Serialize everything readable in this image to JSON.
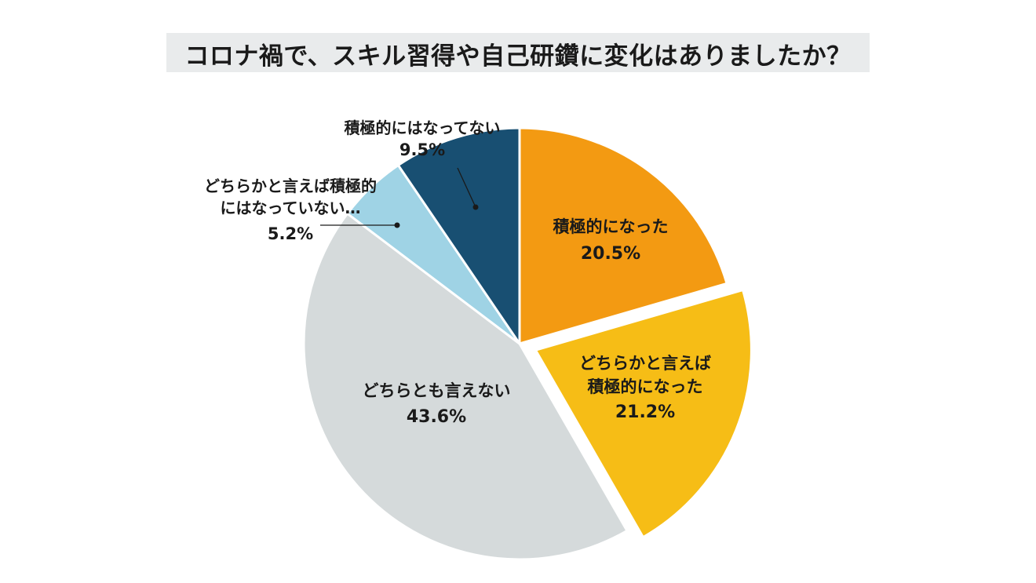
{
  "chart_data": {
    "type": "pie",
    "title": "コロナ禍で、スキル習得や自己研鑽に変化はありましたか？",
    "start_angle_deg": 0,
    "direction": "clockwise",
    "slices": [
      {
        "name_lines": [
          "積極的になった"
        ],
        "value_label": "20.5%",
        "value": 20.5,
        "color": "#f39a12",
        "exploded": false
      },
      {
        "name_lines": [
          "どちらかと言えば",
          "積極的になった"
        ],
        "value_label": "21.2%",
        "value": 21.2,
        "color": "#f6bd16",
        "exploded": true
      },
      {
        "name_lines": [
          "どちらとも言えない"
        ],
        "value_label": "43.6%",
        "value": 43.6,
        "color": "#d5dadb",
        "exploded": false
      },
      {
        "name_lines": [
          "どちらかと言えば積極的",
          "にはなっていない…"
        ],
        "value_label": "5.2%",
        "value": 5.2,
        "color": "#9fd3e5",
        "exploded": false
      },
      {
        "name_lines": [
          "積極的にはなってない"
        ],
        "value_label": "9.5%",
        "value": 9.5,
        "color": "#184f72",
        "exploded": false
      }
    ]
  }
}
